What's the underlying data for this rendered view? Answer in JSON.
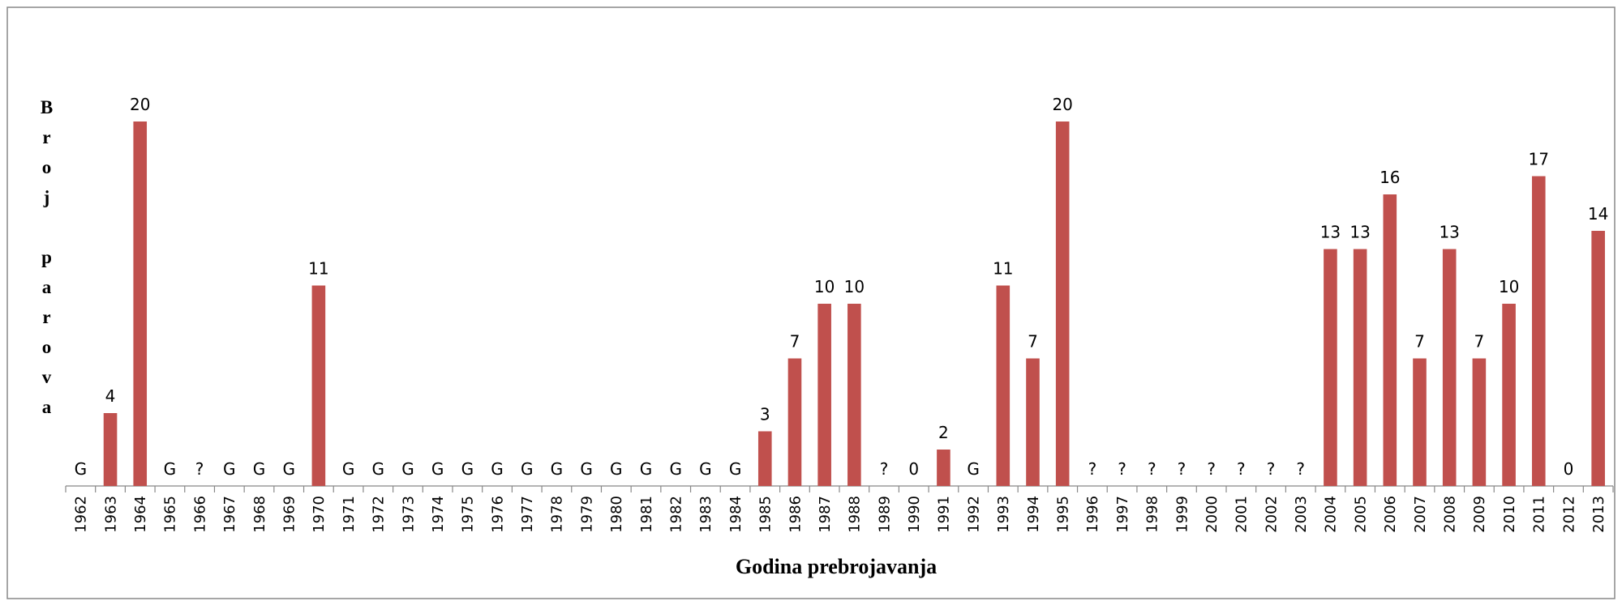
{
  "chart_data": {
    "type": "bar",
    "y_label": "Broj parova",
    "x_label": "Godina prebrojavanja",
    "categories": [
      "1962",
      "1963",
      "1964",
      "1965",
      "1966",
      "1967",
      "1968",
      "1969",
      "1970",
      "1971",
      "1972",
      "1973",
      "1974",
      "1975",
      "1976",
      "1977",
      "1978",
      "1979",
      "1980",
      "1981",
      "1982",
      "1983",
      "1984",
      "1985",
      "1986",
      "1987",
      "1988",
      "1989",
      "1990",
      "1991",
      "1992",
      "1993",
      "1994",
      "1995",
      "1996",
      "1997",
      "1998",
      "1999",
      "2000",
      "2001",
      "2002",
      "2003",
      "2004",
      "2005",
      "2006",
      "2007",
      "2008",
      "2009",
      "2010",
      "2011",
      "2012",
      "2013"
    ],
    "values": [
      null,
      4,
      20,
      null,
      null,
      null,
      null,
      null,
      11,
      null,
      null,
      null,
      null,
      null,
      null,
      null,
      null,
      null,
      null,
      null,
      null,
      null,
      null,
      3,
      7,
      10,
      10,
      null,
      0,
      2,
      null,
      11,
      7,
      20,
      null,
      null,
      null,
      null,
      null,
      null,
      null,
      null,
      13,
      13,
      16,
      7,
      13,
      7,
      10,
      17,
      0,
      14
    ],
    "value_labels": [
      "G",
      "4",
      "20",
      "G",
      "?",
      "G",
      "G",
      "G",
      "11",
      "G",
      "G",
      "G",
      "G",
      "G",
      "G",
      "G",
      "G",
      "G",
      "G",
      "G",
      "G",
      "G",
      "G",
      "3",
      "7",
      "10",
      "10",
      "?",
      "0",
      "2",
      "G",
      "11",
      "7",
      "20",
      "?",
      "?",
      "?",
      "?",
      "?",
      "?",
      "?",
      "?",
      "13",
      "13",
      "16",
      "7",
      "13",
      "7",
      "10",
      "17",
      "0",
      "14"
    ],
    "color": "#c0504d",
    "ylim": [
      0,
      20
    ]
  }
}
